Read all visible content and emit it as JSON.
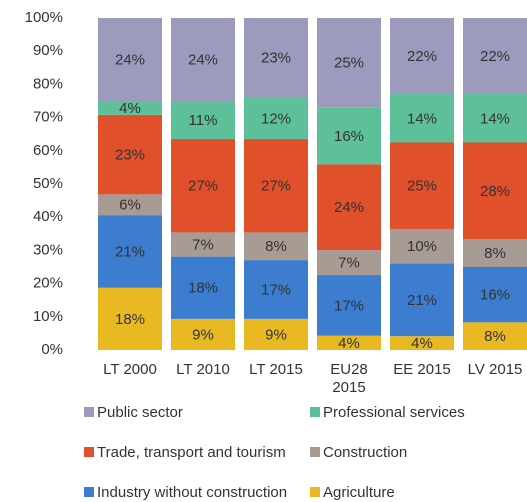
{
  "chart_data": {
    "type": "bar",
    "stack": "percent",
    "categories": [
      "LT 2000",
      "LT 2010",
      "LT 2015",
      "EU28 2015",
      "EE 2015",
      "LV 2015"
    ],
    "series": [
      {
        "name": "Agriculture",
        "color": "#e8b922",
        "values": [
          18,
          9,
          9,
          4,
          4,
          8
        ],
        "value_labels": [
          "18%",
          "9%",
          "9%",
          "4%",
          "4%",
          "8%"
        ]
      },
      {
        "name": "Industry without construction",
        "color": "#3c7dcf",
        "values": [
          21,
          18,
          17,
          17,
          21,
          16
        ],
        "value_labels": [
          "21%",
          "18%",
          "17%",
          "17%",
          "21%",
          "16%"
        ]
      },
      {
        "name": "Construction",
        "color": "#a89b94",
        "values": [
          6,
          7,
          8,
          7,
          10,
          8
        ],
        "value_labels": [
          "6%",
          "7%",
          "8%",
          "7%",
          "10%",
          "8%"
        ]
      },
      {
        "name": "Trade, transport and tourism",
        "color": "#e0512b",
        "values": [
          23,
          27,
          27,
          24,
          25,
          28
        ],
        "value_labels": [
          "23%",
          "27%",
          "27%",
          "24%",
          "25%",
          "28%"
        ]
      },
      {
        "name": "Professional services",
        "color": "#5dc098",
        "values": [
          4,
          11,
          12,
          16,
          14,
          14
        ],
        "value_labels": [
          "4%",
          "11%",
          "12%",
          "16%",
          "14%",
          "14%"
        ]
      },
      {
        "name": "Public sector",
        "color": "#9d9bbd",
        "values": [
          24,
          24,
          23,
          25,
          22,
          22
        ],
        "value_labels": [
          "24%",
          "24%",
          "23%",
          "25%",
          "22%",
          "22%"
        ]
      }
    ],
    "ylim": [
      0,
      100
    ],
    "yticks": [
      {
        "value": 0,
        "label": "0%"
      },
      {
        "value": 10,
        "label": "10%"
      },
      {
        "value": 20,
        "label": "20%"
      },
      {
        "value": 30,
        "label": "30%"
      },
      {
        "value": 40,
        "label": "40%"
      },
      {
        "value": 50,
        "label": "50%"
      },
      {
        "value": 60,
        "label": "60%"
      },
      {
        "value": 70,
        "label": "70%"
      },
      {
        "value": 80,
        "label": "80%"
      },
      {
        "value": 90,
        "label": "90%"
      },
      {
        "value": 100,
        "label": "100%"
      }
    ],
    "grid": false,
    "legend": "bottom"
  }
}
